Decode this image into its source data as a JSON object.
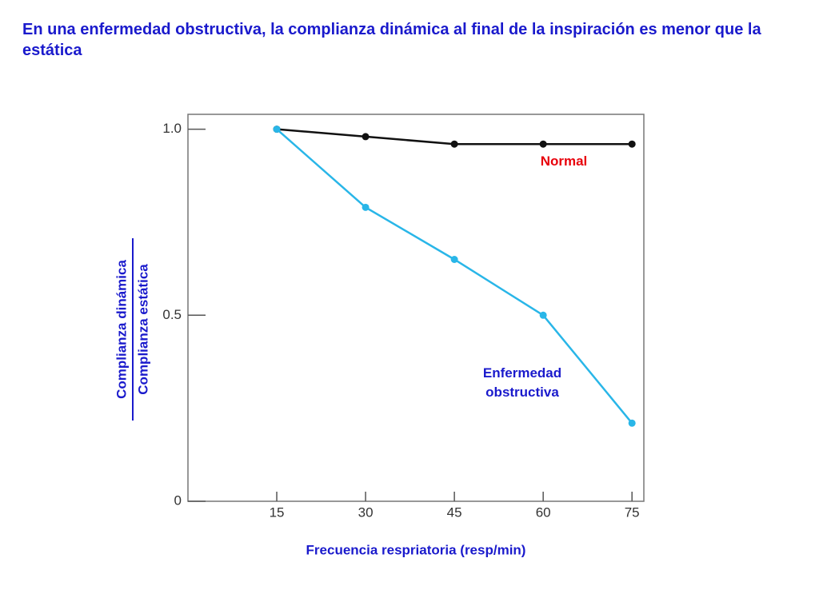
{
  "chart_data": {
    "type": "line",
    "title": "En una enfermedad obstructiva, la complianza dinámica al final de la inspiración es menor que la estática",
    "xlabel": "Frecuencia respriatoria (resp/min)",
    "ylabel": [
      "Complianza dinámica",
      "Complianza estática"
    ],
    "x": [
      15,
      30,
      45,
      60,
      75
    ],
    "series": [
      {
        "name": "Normal",
        "color": "#111111",
        "label_color": "#e8000b",
        "values": [
          1.0,
          0.98,
          0.96,
          0.96,
          0.96
        ]
      },
      {
        "name": "Enfermedad obstructiva",
        "color": "#29b6e8",
        "label_color": "#1a1acc",
        "values": [
          1.0,
          0.79,
          0.65,
          0.5,
          0.21
        ]
      }
    ],
    "xlim": [
      0,
      77
    ],
    "xticks": [
      15,
      30,
      45,
      60,
      75
    ],
    "ylim": [
      0,
      1.04
    ],
    "yticks": [
      0,
      0.5,
      {
        "value": 1,
        "label": "1.0"
      }
    ],
    "grid": false
  }
}
